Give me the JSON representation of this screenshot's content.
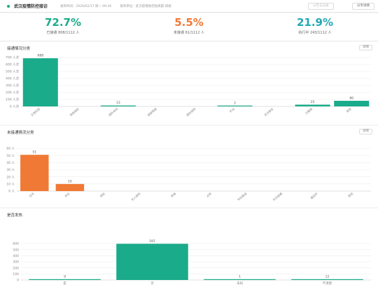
{
  "header": {
    "title": "武汉疫情防控接访",
    "meta": [
      "发布时间：2020/02/17 周一 09:30",
      "发布单位：武汉疫情防控指挥部 四组"
    ],
    "button_secondary": "公告与记录",
    "button_primary": "分享详情"
  },
  "stats": [
    {
      "percent": "72.7%",
      "label": "已接通 808/1112 人"
    },
    {
      "percent": "5.5%",
      "label": "未接通 61/1112 人"
    },
    {
      "percent": "21.9%",
      "label": "执行中 243/1112 人"
    }
  ],
  "colors": {
    "teal": "#1aab8a",
    "orange": "#f07a35",
    "cyan": "#21a7b5"
  },
  "panels": {
    "connected_title": "接通情况分类",
    "not_connected_title": "未接通情况分类",
    "fever_title": "是否发热",
    "detail_button": "详情"
  },
  "chart_data": [
    {
      "type": "bar",
      "title": "接通情况分类",
      "unit": "人次",
      "categories": [
        "正常回答",
        "拒绝接听",
        "接听未完",
        "居家隔离",
        "疑似病例",
        "外出",
        "无法联系",
        "已搬离",
        "其他"
      ],
      "values": [
        688,
        0,
        13,
        0,
        0,
        2,
        0,
        25,
        80
      ],
      "ylim": [
        0,
        700
      ],
      "yticks": [
        "0 人次",
        "100 人次",
        "200 人次",
        "300 人次",
        "400 人次",
        "500 人次",
        "600 人次",
        "700 人次"
      ],
      "color": "#1aab8a",
      "grid": true
    },
    {
      "type": "bar",
      "title": "未接通情况分类",
      "unit": "人",
      "categories": [
        "空号",
        "关机",
        "停机",
        "无人接听",
        "拒接",
        "占线",
        "号码错误",
        "无法接通",
        "通话中",
        "其他"
      ],
      "values": [
        51,
        10,
        0,
        0,
        0,
        0,
        0,
        0,
        0,
        0
      ],
      "ylim": [
        0,
        60
      ],
      "yticks": [
        "0 人",
        "10 人",
        "20 人",
        "30 人",
        "40 人",
        "50 人",
        "60 人"
      ],
      "color": "#f07a35",
      "grid": true
    },
    {
      "type": "bar",
      "title": "是否发热",
      "categories": [
        "是",
        "否",
        "未知",
        "不清楚"
      ],
      "values": [
        9,
        597,
        1,
        12
      ],
      "ylim": [
        0,
        600
      ],
      "yticks": [
        "0",
        "100",
        "200",
        "300",
        "400",
        "500",
        "600"
      ],
      "color": "#1aab8a",
      "grid": true
    }
  ]
}
